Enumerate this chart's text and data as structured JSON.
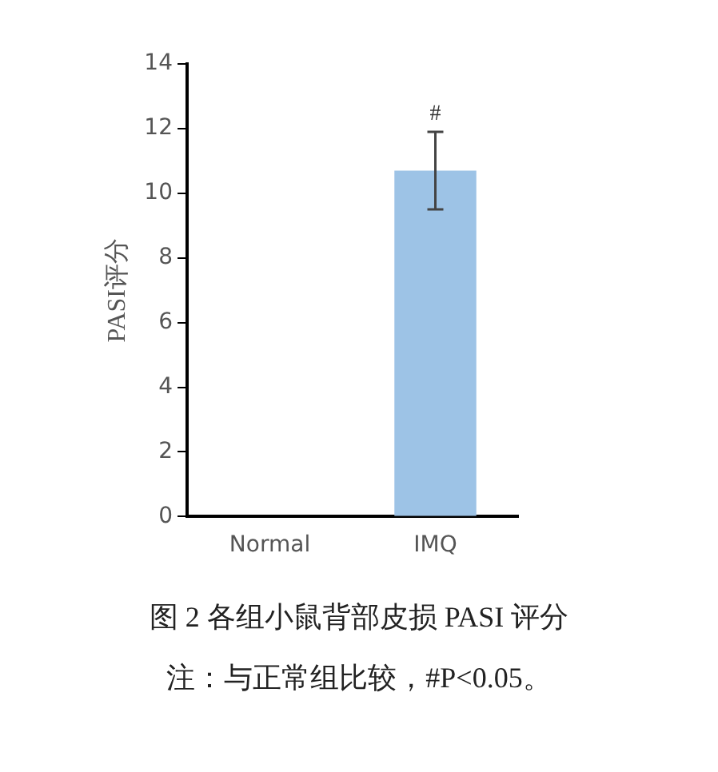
{
  "chart_data": {
    "type": "bar",
    "ylabel": "PASI评分",
    "categories": [
      "Normal",
      "IMQ"
    ],
    "values": [
      0,
      10.7
    ],
    "errors": [
      null,
      1.2
    ],
    "color": "#9dc3e6",
    "ylim": [
      0,
      14
    ],
    "yticks": [
      0,
      2,
      4,
      6,
      8,
      10,
      12,
      14
    ],
    "grid": false,
    "legend": false,
    "annotations": [
      {
        "text": "#",
        "x": "IMQ",
        "y": 11.9
      },
      "图 2 各组小鼠背部皮损 PASI 评分",
      "注：与正常组比较，#P<0.05。"
    ]
  }
}
